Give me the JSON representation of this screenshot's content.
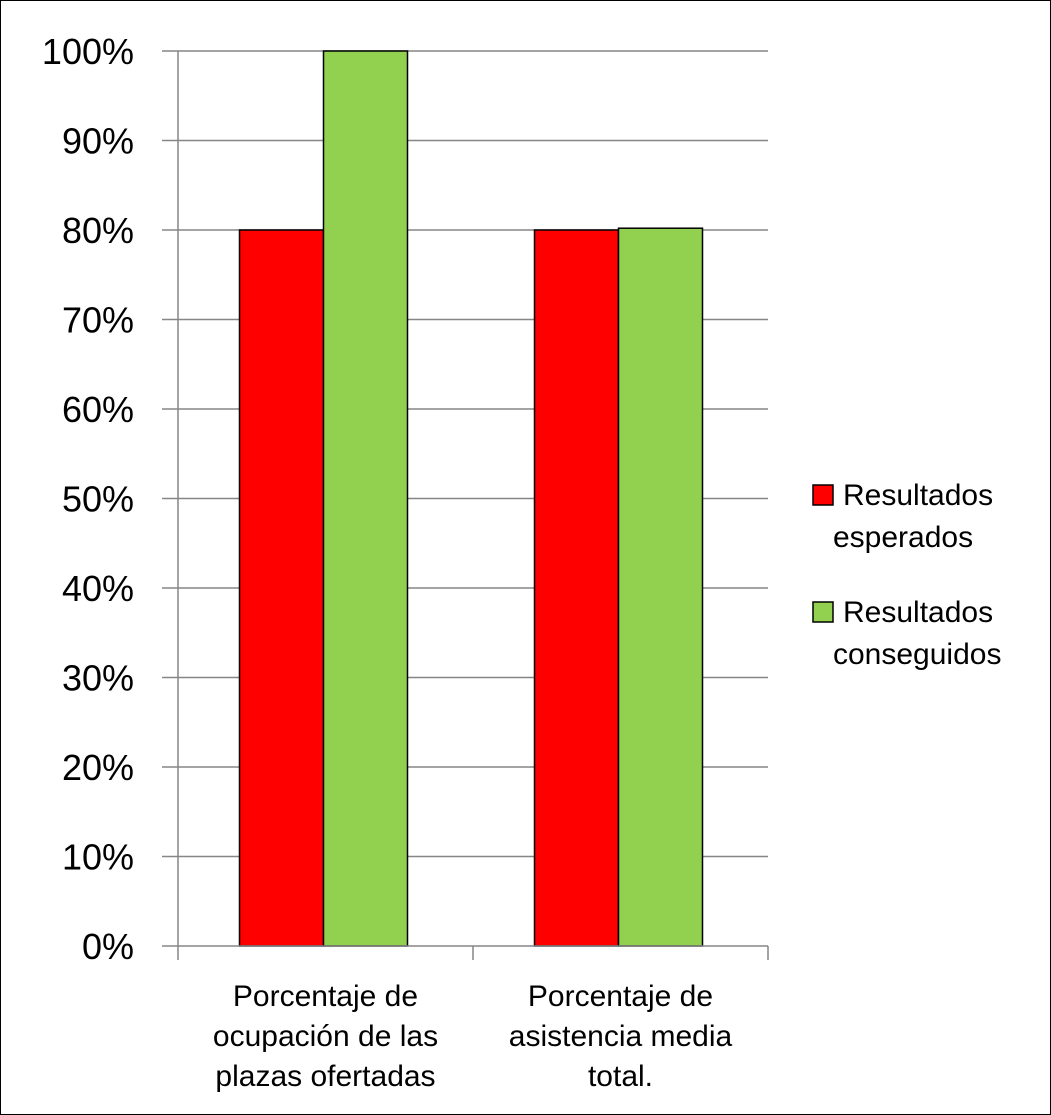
{
  "chart_data": {
    "type": "bar",
    "categories": [
      [
        "Porcentaje de",
        "ocupación de las",
        "plazas ofertadas"
      ],
      [
        "Porcentaje de",
        "asistencia media",
        "total."
      ]
    ],
    "series": [
      {
        "name": "Resultados esperados",
        "legend_lines": [
          "Resultados",
          "esperados"
        ],
        "color": "#ff0000",
        "values": [
          80,
          80
        ]
      },
      {
        "name": "Resultados conseguidos",
        "legend_lines": [
          "Resultados",
          "conseguidos"
        ],
        "color": "#92d050",
        "values": [
          100,
          80.2
        ]
      }
    ],
    "y_ticks": [
      "0%",
      "10%",
      "20%",
      "30%",
      "40%",
      "50%",
      "60%",
      "70%",
      "80%",
      "90%",
      "100%"
    ],
    "ylim": [
      0,
      100
    ],
    "grid": true,
    "legend": "right",
    "title": "",
    "xlabel": "",
    "ylabel": ""
  }
}
